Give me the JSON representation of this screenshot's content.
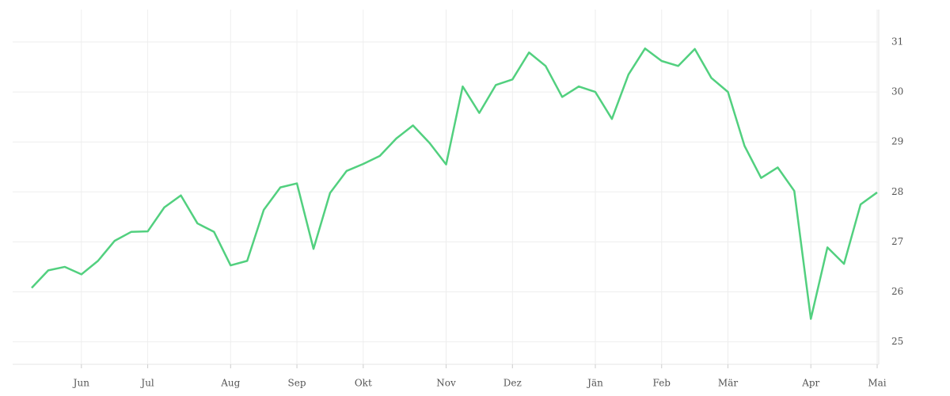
{
  "chart_data": {
    "type": "line",
    "categories": [
      null,
      null,
      null,
      "Jun",
      null,
      null,
      null,
      "Jul",
      null,
      null,
      null,
      null,
      "Aug",
      null,
      null,
      null,
      "Sep",
      null,
      null,
      null,
      "Okt",
      null,
      null,
      null,
      null,
      "Nov",
      null,
      null,
      null,
      "Dez",
      null,
      null,
      null,
      null,
      "Jän",
      null,
      null,
      null,
      "Feb",
      null,
      null,
      null,
      "Mär",
      null,
      null,
      null,
      null,
      "Apr",
      null,
      null,
      null,
      "Mai"
    ],
    "series": [
      {
        "color": "#52d07f",
        "values": [
          26.08,
          26.43,
          26.5,
          26.35,
          26.62,
          27.02,
          27.2,
          27.21,
          27.69,
          27.93,
          27.37,
          27.2,
          26.53,
          26.62,
          27.64,
          28.09,
          28.17,
          26.86,
          27.98,
          28.42,
          28.56,
          28.72,
          29.07,
          29.33,
          28.98,
          28.55,
          30.11,
          29.58,
          30.14,
          30.25,
          30.79,
          30.52,
          29.9,
          30.11,
          30.0,
          29.46,
          30.35,
          30.87,
          30.62,
          30.52,
          30.86,
          30.28,
          30.0,
          28.92,
          28.28,
          28.49,
          28.02,
          25.46,
          26.89,
          26.56,
          27.75,
          27.99
        ]
      }
    ],
    "ylim": [
      24.55,
      31.65
    ],
    "yticks": [
      25,
      26,
      27,
      28,
      29,
      30,
      31
    ],
    "grid": true
  }
}
